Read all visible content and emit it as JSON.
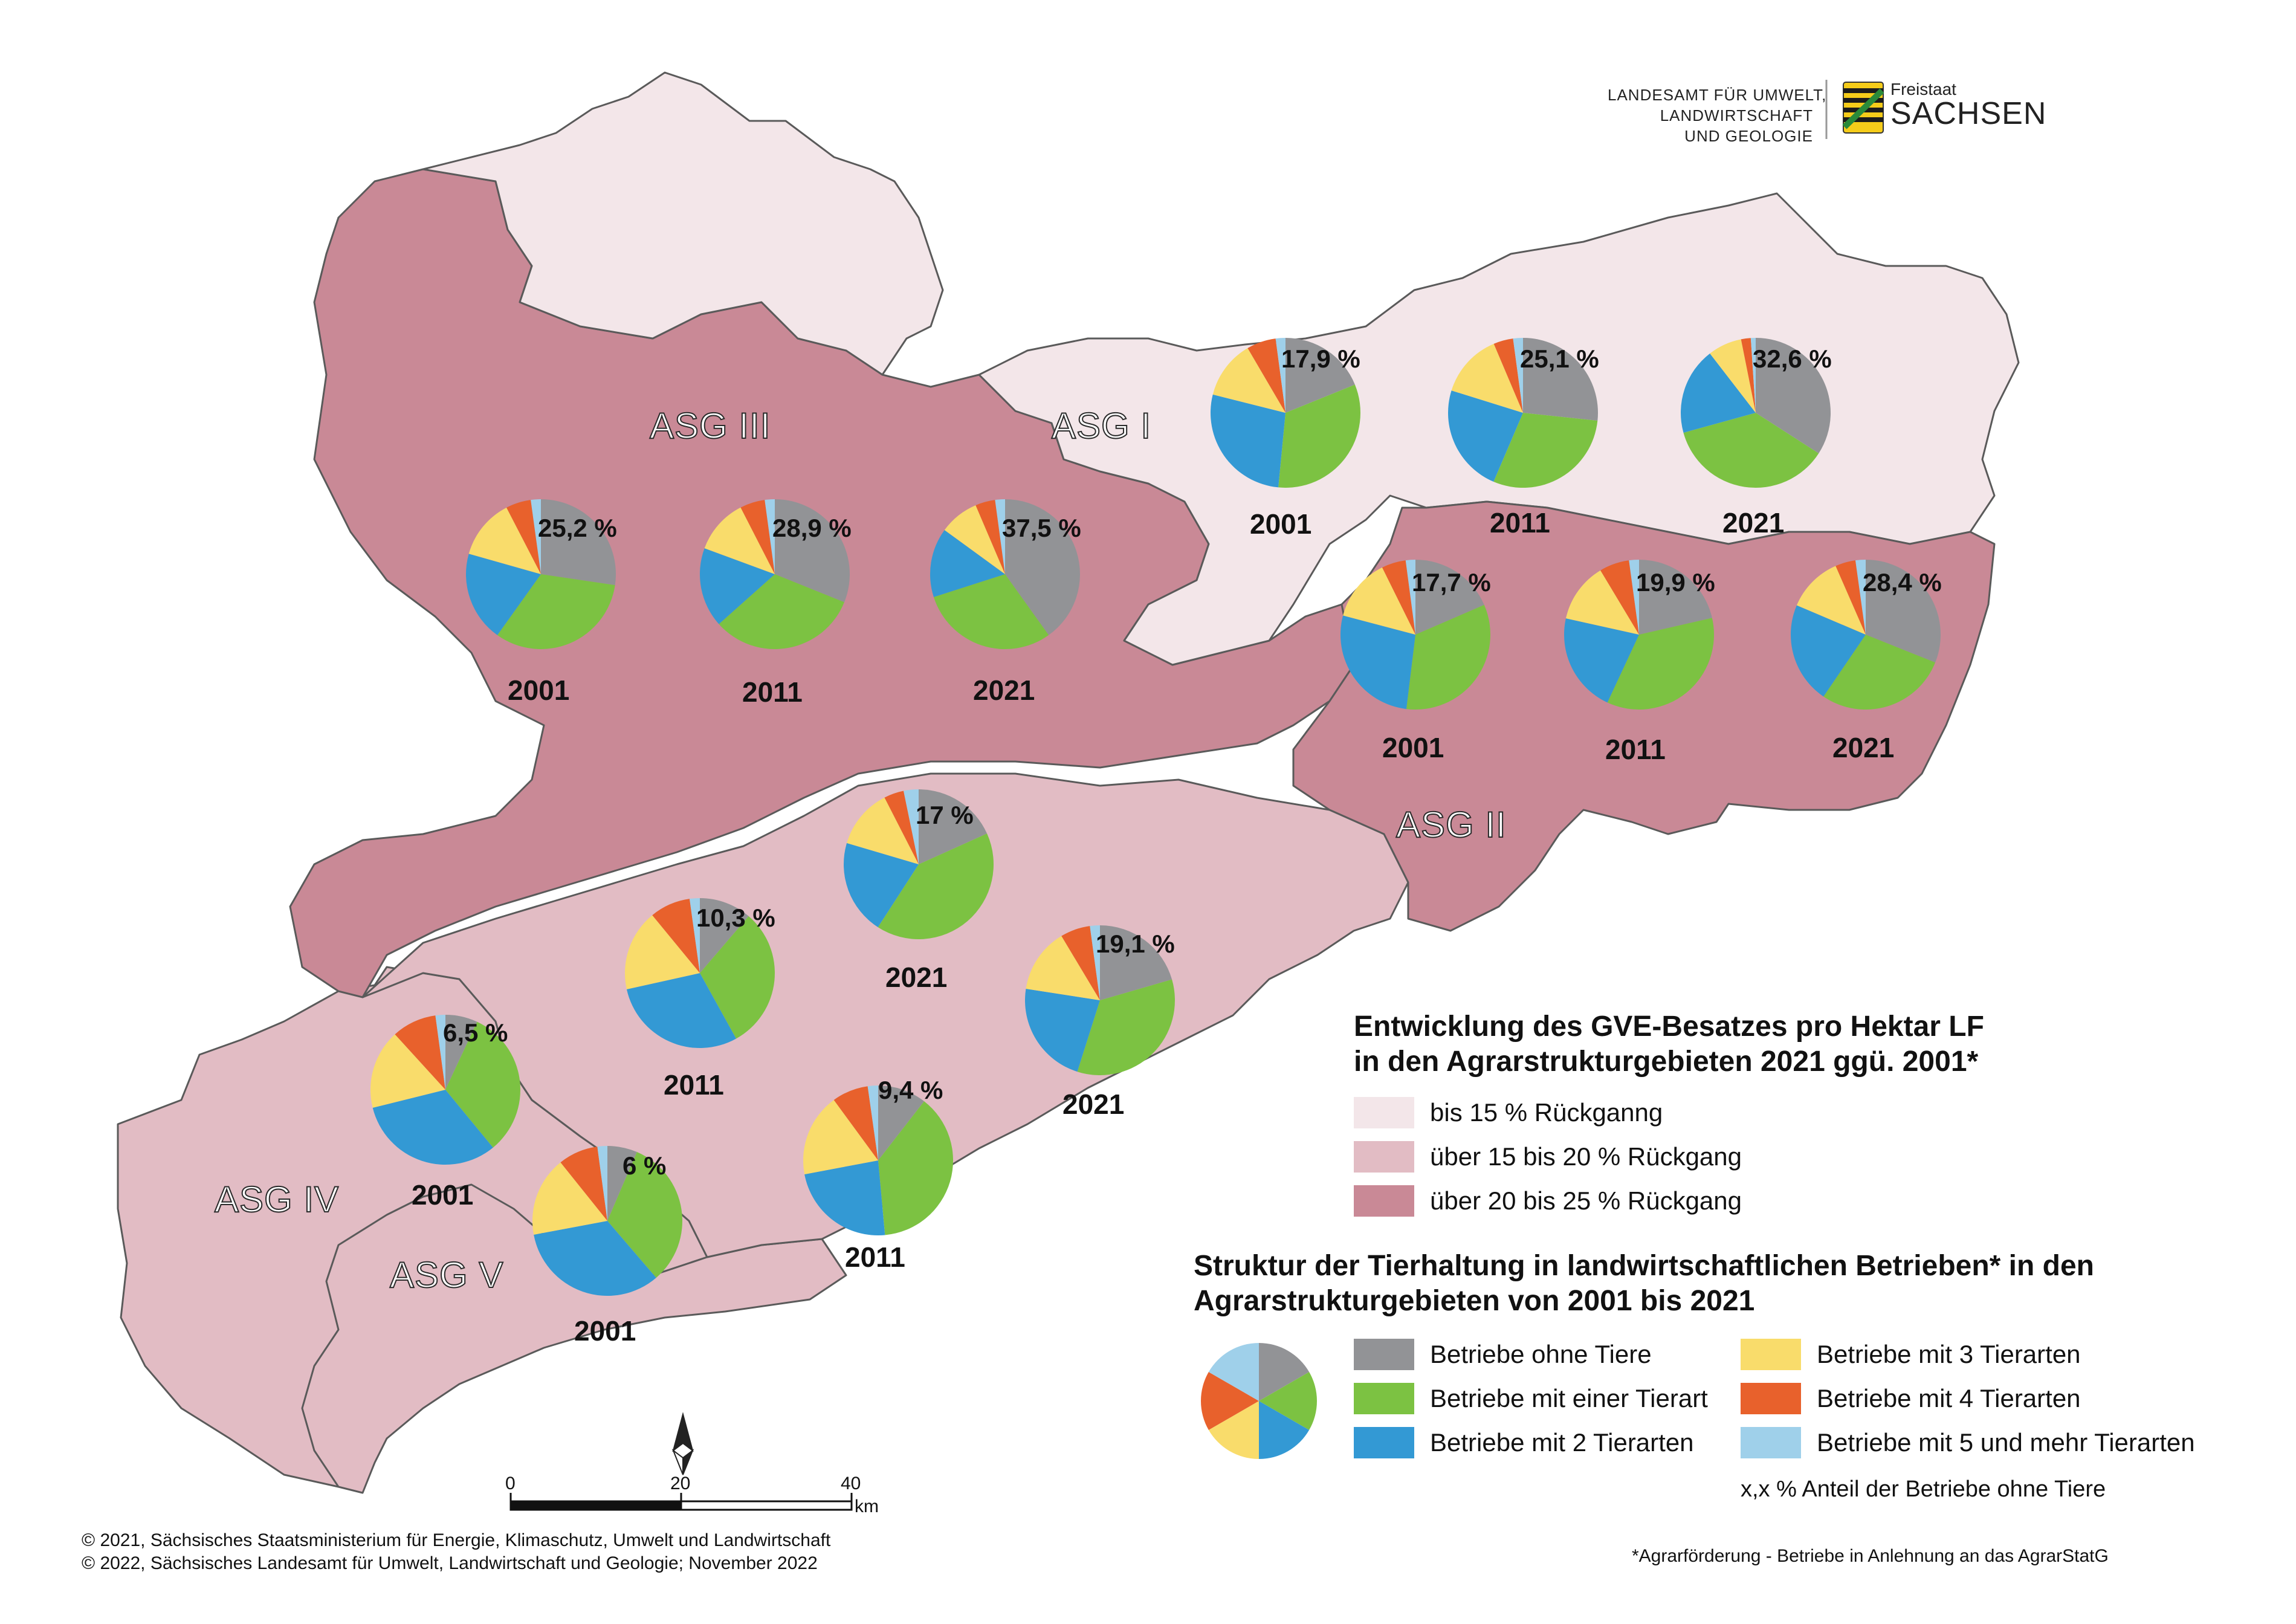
{
  "colors": {
    "class1": "#f3e6e9",
    "class2": "#e2bcc4",
    "class3": "#c98996",
    "ohne": "#929396",
    "eine": "#7cc242",
    "zwei": "#3399d4",
    "drei": "#f9dc6b",
    "vier": "#e8612c",
    "fuenf": "#9fd0ea"
  },
  "logo": {
    "lfulg_line1": "LANDESAMT FÜR UMWELT,",
    "lfulg_line2": "LANDWIRTSCHAFT",
    "lfulg_line3": "UND GEOLOGIE",
    "freistaat": "Freistaat",
    "sachsen": "SACHSEN",
    "emblem": "sachsen-coat-of-arms"
  },
  "regions": {
    "asg1": {
      "label": "ASG I",
      "class": "class1"
    },
    "asg2": {
      "label": "ASG II",
      "class": "class3"
    },
    "asg3": {
      "label": "ASG III",
      "class": "class3"
    },
    "asg4": {
      "label": "ASG IV",
      "class": "class2"
    },
    "asg5": {
      "label": "ASG V",
      "class": "class2"
    }
  },
  "pies": [
    {
      "asg": "ASG III",
      "year": "2001",
      "pct": "25,2 %",
      "shares": [
        25.2,
        30,
        18,
        12,
        5,
        2
      ]
    },
    {
      "asg": "ASG III",
      "year": "2011",
      "pct": "28,9 %",
      "shares": [
        28.9,
        30,
        16,
        11,
        5,
        2
      ]
    },
    {
      "asg": "ASG III",
      "year": "2021",
      "pct": "37,5 %",
      "shares": [
        37.5,
        28,
        14,
        8,
        4,
        2
      ]
    },
    {
      "asg": "ASG I",
      "year": "2001",
      "pct": "17,9 %",
      "shares": [
        17.9,
        31,
        26,
        12,
        6,
        2
      ]
    },
    {
      "asg": "ASG I",
      "year": "2011",
      "pct": "25,1 %",
      "shares": [
        25.1,
        28,
        22,
        13,
        4,
        2
      ]
    },
    {
      "asg": "ASG I",
      "year": "2021",
      "pct": "32,6 %",
      "shares": [
        32.6,
        35,
        18,
        7,
        2,
        1
      ]
    },
    {
      "asg": "ASG II",
      "year": "2001",
      "pct": "17,7 %",
      "shares": [
        17.7,
        32,
        26,
        13,
        5,
        2
      ]
    },
    {
      "asg": "ASG II",
      "year": "2011",
      "pct": "19,9 %",
      "shares": [
        19.9,
        33,
        20,
        12,
        6,
        2
      ]
    },
    {
      "asg": "ASG II",
      "year": "2021",
      "pct": "28,4 %",
      "shares": [
        28.4,
        26,
        20,
        11,
        4,
        2
      ]
    },
    {
      "asg": "ASG IV",
      "year": "2001",
      "pct": "6,5 %",
      "shares": [
        6.5,
        30,
        30,
        16,
        9,
        2
      ]
    },
    {
      "asg": "ASG IV",
      "year": "2011",
      "pct": "10,3 %",
      "shares": [
        10.3,
        28,
        27,
        16,
        8,
        2
      ]
    },
    {
      "asg": "ASG IV",
      "year": "2021",
      "pct": "17 %",
      "shares": [
        17,
        38,
        19,
        12,
        4,
        3
      ]
    },
    {
      "asg": "ASG V",
      "year": "2001",
      "pct": "6 %",
      "shares": [
        6,
        30,
        31,
        16,
        8,
        2
      ]
    },
    {
      "asg": "ASG V",
      "year": "2011",
      "pct": "9,4 %",
      "shares": [
        9.4,
        34,
        21,
        16,
        7,
        2
      ]
    },
    {
      "asg": "ASG V",
      "year": "2021",
      "pct": "19,1 %",
      "shares": [
        19.1,
        32,
        21,
        13,
        6,
        2
      ]
    }
  ],
  "legend": {
    "title1_line1": "Entwicklung des GVE-Besatzes pro Hektar LF",
    "title1_line2": "in den Agrarstrukturgebieten 2021 ggü. 2001*",
    "classes": [
      {
        "label": "bis 15 % Rückganng",
        "color": "#f3e6e9"
      },
      {
        "label": "über 15 bis 20 % Rückgang",
        "color": "#e2bcc4"
      },
      {
        "label": "über 20 bis 25 % Rückgang",
        "color": "#c98996"
      }
    ],
    "title2_line1": "Struktur der Tierhaltung in landwirtschaftlichen Betrieben* in den",
    "title2_line2": "Agrarstrukturgebieten von 2001 bis 2021",
    "categories": [
      {
        "label": "Betriebe ohne Tiere",
        "color": "#929396"
      },
      {
        "label": "Betriebe mit einer Tierart",
        "color": "#7cc242"
      },
      {
        "label": "Betriebe mit 2 Tierarten",
        "color": "#3399d4"
      },
      {
        "label": "Betriebe mit 3 Tierarten",
        "color": "#f9dc6b"
      },
      {
        "label": "Betriebe mit 4 Tierarten",
        "color": "#e8612c"
      },
      {
        "label": "Betriebe mit 5 und mehr Tierarten",
        "color": "#9fd0ea"
      }
    ],
    "pct_note": "x,x %  Anteil der Betriebe ohne Tiere"
  },
  "scale": {
    "labels": [
      "0",
      "20",
      "40"
    ],
    "unit": "km"
  },
  "north_arrow": "north-arrow",
  "credits": {
    "line1": "© 2021, Sächsisches Staatsministerium für Energie, Klimaschutz, Umwelt und Landwirtschaft",
    "line2": "© 2022, Sächsisches Landesamt für Umwelt, Landwirtschaft und Geologie; November 2022"
  },
  "footnote": "*Agrarförderung - Betriebe in Anlehnung an das AgrarStatG"
}
